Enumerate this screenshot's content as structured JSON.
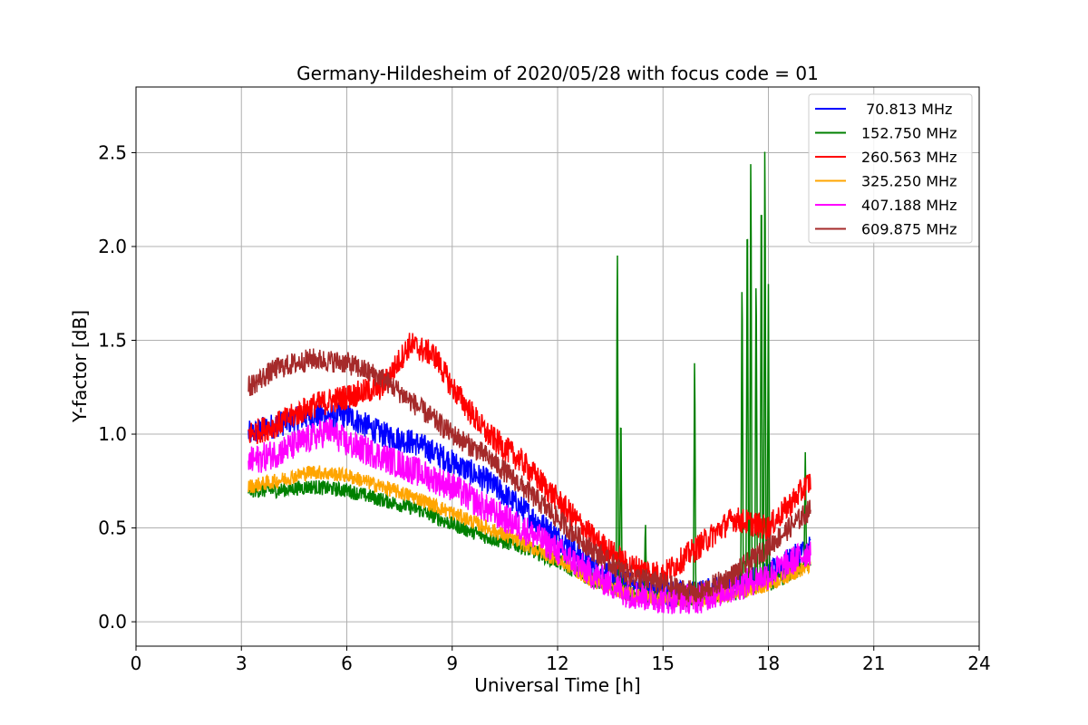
{
  "chart_data": {
    "type": "line",
    "title": "Germany-Hildesheim of 2020/05/28 with focus code = 01",
    "xlabel": "Universal Time [h]",
    "ylabel": "Y-factor [dB]",
    "xlim": [
      0,
      24
    ],
    "ylim": [
      -0.13,
      2.85
    ],
    "xticks": [
      0,
      3,
      6,
      9,
      12,
      15,
      18,
      21,
      24
    ],
    "xtick_labels": [
      "0",
      "3",
      "6",
      "9",
      "12",
      "15",
      "18",
      "21",
      "24"
    ],
    "yticks": [
      0.0,
      0.5,
      1.0,
      1.5,
      2.0,
      2.5
    ],
    "ytick_labels": [
      "0.0",
      "0.5",
      "1.0",
      "1.5",
      "2.0",
      "2.5"
    ],
    "grid": true,
    "legend_position": "top-right",
    "series": [
      {
        "name": " 70.813 MHz",
        "color": "#0000ff",
        "noise": 0.07,
        "x": [
          3.2,
          4,
          5,
          6,
          7,
          8,
          9,
          10,
          11,
          12,
          13,
          14,
          15,
          16,
          17,
          18,
          19.2
        ],
        "y": [
          1.0,
          1.05,
          1.1,
          1.1,
          1.0,
          0.95,
          0.85,
          0.75,
          0.6,
          0.45,
          0.3,
          0.2,
          0.15,
          0.15,
          0.2,
          0.25,
          0.4
        ]
      },
      {
        "name": "152.750 MHz",
        "color": "#008000",
        "noise": 0.04,
        "x": [
          3.2,
          4,
          5,
          6,
          7,
          8,
          9,
          10,
          11,
          12,
          13,
          14,
          15,
          16,
          17,
          18,
          19.2
        ],
        "y": [
          0.7,
          0.7,
          0.72,
          0.7,
          0.65,
          0.6,
          0.52,
          0.45,
          0.4,
          0.32,
          0.22,
          0.15,
          0.12,
          0.12,
          0.15,
          0.2,
          0.3
        ],
        "spikes": [
          {
            "x": 9.05,
            "y": 0.3
          },
          {
            "x": 13.7,
            "y": 2.11
          },
          {
            "x": 13.8,
            "y": 1.2
          },
          {
            "x": 14.5,
            "y": 0.55
          },
          {
            "x": 15.9,
            "y": 1.49
          },
          {
            "x": 17.25,
            "y": 1.98
          },
          {
            "x": 17.4,
            "y": 2.4
          },
          {
            "x": 17.5,
            "y": 2.64
          },
          {
            "x": 17.65,
            "y": 2.0
          },
          {
            "x": 17.8,
            "y": 2.55
          },
          {
            "x": 17.9,
            "y": 2.71
          },
          {
            "x": 18.0,
            "y": 1.8
          },
          {
            "x": 19.05,
            "y": 0.93
          }
        ]
      },
      {
        "name": "260.563 MHz",
        "color": "#ff0000",
        "noise": 0.07,
        "x": [
          3.2,
          4,
          5,
          6,
          7,
          7.8,
          8.5,
          9,
          10,
          11,
          12,
          13,
          14,
          15,
          16,
          17,
          18,
          19.2
        ],
        "y": [
          1.0,
          1.05,
          1.15,
          1.2,
          1.25,
          1.48,
          1.42,
          1.25,
          1.0,
          0.85,
          0.65,
          0.45,
          0.3,
          0.25,
          0.4,
          0.55,
          0.5,
          0.75
        ]
      },
      {
        "name": "325.250 MHz",
        "color": "#ffa500",
        "noise": 0.04,
        "x": [
          3.2,
          4,
          5,
          6,
          7,
          8,
          9,
          10,
          11,
          12,
          13,
          14,
          15,
          16,
          17,
          18,
          19.2
        ],
        "y": [
          0.72,
          0.75,
          0.8,
          0.78,
          0.72,
          0.66,
          0.58,
          0.5,
          0.42,
          0.33,
          0.22,
          0.15,
          0.12,
          0.12,
          0.15,
          0.2,
          0.3
        ]
      },
      {
        "name": "407.188 MHz",
        "color": "#ff00ff",
        "noise": 0.08,
        "x": [
          3.2,
          4,
          5,
          5.5,
          6,
          7,
          8,
          9,
          10,
          11,
          12,
          13,
          14,
          15,
          16,
          17,
          18,
          19.2
        ],
        "y": [
          0.85,
          0.9,
          0.98,
          1.02,
          0.95,
          0.88,
          0.8,
          0.72,
          0.6,
          0.5,
          0.38,
          0.25,
          0.15,
          0.12,
          0.12,
          0.18,
          0.25,
          0.38
        ]
      },
      {
        "name": "609.875 MHz",
        "color": "#a52a2a",
        "noise": 0.06,
        "x": [
          3.2,
          4,
          5,
          6,
          7,
          8,
          9,
          10,
          11,
          12,
          13,
          14,
          15,
          16,
          17,
          18,
          19.2
        ],
        "y": [
          1.25,
          1.35,
          1.4,
          1.38,
          1.3,
          1.15,
          1.0,
          0.88,
          0.72,
          0.55,
          0.38,
          0.25,
          0.2,
          0.15,
          0.25,
          0.4,
          0.6
        ]
      }
    ]
  }
}
